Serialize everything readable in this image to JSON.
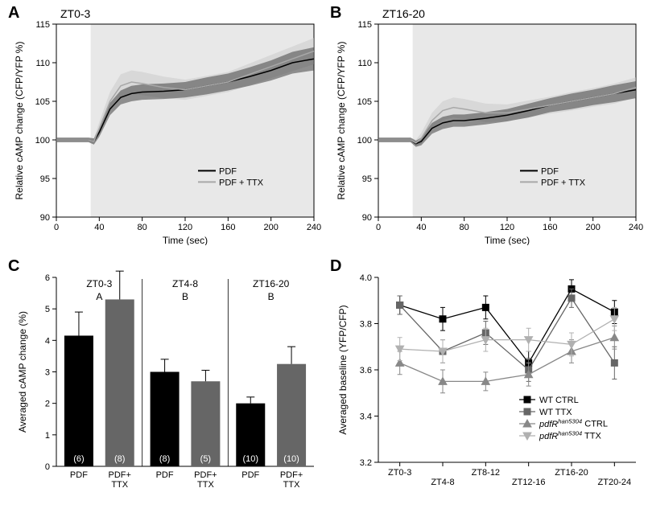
{
  "panelA": {
    "label": "A",
    "title": "ZT0-3",
    "ylabel": "Relative cAMP change (CFP/YFP %)",
    "xlabel": "Time (sec)",
    "xlim": [
      0,
      240
    ],
    "ylim": [
      90,
      115
    ],
    "xticks": [
      0,
      40,
      80,
      120,
      160,
      200,
      240
    ],
    "yticks": [
      90,
      95,
      100,
      105,
      110,
      115
    ],
    "shade_start": 32,
    "shade_color": "#e8e8e8",
    "series": [
      {
        "name": "PDF",
        "color": "#000000",
        "fill": "#333333",
        "x": [
          0,
          20,
          30,
          35,
          40,
          50,
          60,
          70,
          80,
          100,
          120,
          140,
          160,
          180,
          200,
          220,
          240
        ],
        "y": [
          100,
          100,
          100,
          99.8,
          101,
          104,
          105.5,
          106,
          106.2,
          106.3,
          106.5,
          107,
          107.5,
          108.2,
          109,
          110,
          110.5
        ],
        "band": [
          0.3,
          0.3,
          0.3,
          0.4,
          0.6,
          0.8,
          0.9,
          1.0,
          1.0,
          1.0,
          1.0,
          1.1,
          1.1,
          1.2,
          1.3,
          1.4,
          1.5
        ]
      },
      {
        "name": "PDF + TTX",
        "color": "#a8a8a8",
        "fill": "#c8c8c8",
        "x": [
          0,
          20,
          30,
          35,
          40,
          50,
          60,
          70,
          80,
          100,
          120,
          140,
          160,
          180,
          200,
          220,
          240
        ],
        "y": [
          100,
          100,
          100,
          99.8,
          101.5,
          105,
          107,
          107.5,
          107.3,
          106.8,
          106.5,
          107,
          107.5,
          108.5,
          109.5,
          110.5,
          111.5
        ],
        "band": [
          0.3,
          0.3,
          0.3,
          0.4,
          0.8,
          1.2,
          1.5,
          1.5,
          1.5,
          1.4,
          1.3,
          1.3,
          1.3,
          1.4,
          1.5,
          1.6,
          1.7
        ]
      }
    ],
    "legend": [
      {
        "label": "PDF",
        "color": "#000000"
      },
      {
        "label": "PDF + TTX",
        "color": "#a8a8a8"
      }
    ]
  },
  "panelB": {
    "label": "B",
    "title": "ZT16-20",
    "ylabel": "Relative cAMP change (CFP/YFP %)",
    "xlabel": "Time (sec)",
    "xlim": [
      0,
      240
    ],
    "ylim": [
      90,
      115
    ],
    "xticks": [
      0,
      40,
      80,
      120,
      160,
      200,
      240
    ],
    "yticks": [
      90,
      95,
      100,
      105,
      110,
      115
    ],
    "shade_start": 32,
    "shade_color": "#e8e8e8",
    "series": [
      {
        "name": "PDF",
        "color": "#000000",
        "fill": "#333333",
        "x": [
          0,
          20,
          30,
          35,
          40,
          50,
          60,
          70,
          80,
          100,
          120,
          140,
          160,
          180,
          200,
          220,
          240
        ],
        "y": [
          100,
          100,
          100,
          99.5,
          99.8,
          101.5,
          102.2,
          102.5,
          102.5,
          102.8,
          103.2,
          103.8,
          104.5,
          105,
          105.5,
          106,
          106.5
        ],
        "band": [
          0.3,
          0.3,
          0.3,
          0.4,
          0.5,
          0.7,
          0.8,
          0.8,
          0.8,
          0.8,
          0.8,
          0.9,
          0.9,
          1.0,
          1.0,
          1.1,
          1.1
        ]
      },
      {
        "name": "PDF + TTX",
        "color": "#a8a8a8",
        "fill": "#c8c8c8",
        "x": [
          0,
          20,
          30,
          35,
          40,
          50,
          60,
          70,
          80,
          100,
          120,
          140,
          160,
          180,
          200,
          220,
          240
        ],
        "y": [
          100,
          100,
          100,
          99.6,
          100.2,
          102.5,
          103.8,
          104.2,
          104,
          103.5,
          103.5,
          104,
          104.5,
          105,
          105.5,
          106,
          106.8
        ],
        "band": [
          0.3,
          0.3,
          0.3,
          0.4,
          0.7,
          1.0,
          1.2,
          1.3,
          1.3,
          1.2,
          1.1,
          1.1,
          1.1,
          1.2,
          1.2,
          1.3,
          1.3
        ]
      }
    ],
    "legend": [
      {
        "label": "PDF",
        "color": "#000000"
      },
      {
        "label": "PDF + TTX",
        "color": "#a8a8a8"
      }
    ]
  },
  "panelC": {
    "label": "C",
    "ylabel": "Averaged cAMP change (%)",
    "ylim": [
      0,
      6
    ],
    "yticks": [
      0,
      1,
      2,
      3,
      4,
      5,
      6
    ],
    "groups": [
      {
        "title": "ZT0-3",
        "letter": "A",
        "bars": [
          {
            "label": "PDF",
            "value": 4.15,
            "err": 0.75,
            "n": "(6)",
            "color": "#000000"
          },
          {
            "label": "PDF+\nTTX",
            "value": 5.3,
            "err": 0.9,
            "n": "(8)",
            "color": "#666666"
          }
        ]
      },
      {
        "title": "ZT4-8",
        "letter": "B",
        "bars": [
          {
            "label": "PDF",
            "value": 3.0,
            "err": 0.4,
            "n": "(8)",
            "color": "#000000"
          },
          {
            "label": "PDF+\nTTX",
            "value": 2.7,
            "err": 0.35,
            "n": "(5)",
            "color": "#666666"
          }
        ]
      },
      {
        "title": "ZT16-20",
        "letter": "B",
        "bars": [
          {
            "label": "PDF",
            "value": 2.0,
            "err": 0.2,
            "n": "(10)",
            "color": "#000000"
          },
          {
            "label": "PDF+\nTTX",
            "value": 3.25,
            "err": 0.55,
            "n": "(10)",
            "color": "#666666"
          }
        ]
      }
    ]
  },
  "panelD": {
    "label": "D",
    "ylabel": "Averaged baseline (YFP/CFP)",
    "ylim": [
      3.2,
      4.0
    ],
    "yticks": [
      3.2,
      3.4,
      3.6,
      3.8,
      4.0
    ],
    "xcats": [
      "ZT0-3",
      "ZT4-8",
      "ZT8-12",
      "ZT12-16",
      "ZT16-20",
      "ZT20-24"
    ],
    "series": [
      {
        "name": "WT CTRL",
        "color": "#000000",
        "marker": "square-filled",
        "y": [
          3.88,
          3.82,
          3.87,
          3.63,
          3.95,
          3.85
        ],
        "err": [
          0.04,
          0.05,
          0.05,
          0.05,
          0.04,
          0.05
        ]
      },
      {
        "name": "WT TTX",
        "color": "#666666",
        "marker": "square-filled",
        "y": [
          3.88,
          3.68,
          3.76,
          3.6,
          3.91,
          3.63
        ],
        "err": [
          0.04,
          0.05,
          0.05,
          0.05,
          0.04,
          0.07
        ]
      },
      {
        "name_html": "<span class='italic'>pdfR<sup>han5304</sup></span> CTRL",
        "color": "#888888",
        "marker": "triangle-up",
        "y": [
          3.63,
          3.55,
          3.55,
          3.58,
          3.68,
          3.74
        ],
        "err": [
          0.05,
          0.05,
          0.04,
          0.05,
          0.05,
          0.05
        ]
      },
      {
        "name_html": "<span class='italic'>pdfR<sup>han5304</sup></span> TTX",
        "color": "#b0b0b0",
        "marker": "triangle-down",
        "y": [
          3.69,
          3.68,
          3.73,
          3.73,
          3.71,
          3.82
        ],
        "err": [
          0.05,
          0.05,
          0.05,
          0.05,
          0.05,
          0.05
        ]
      }
    ]
  }
}
